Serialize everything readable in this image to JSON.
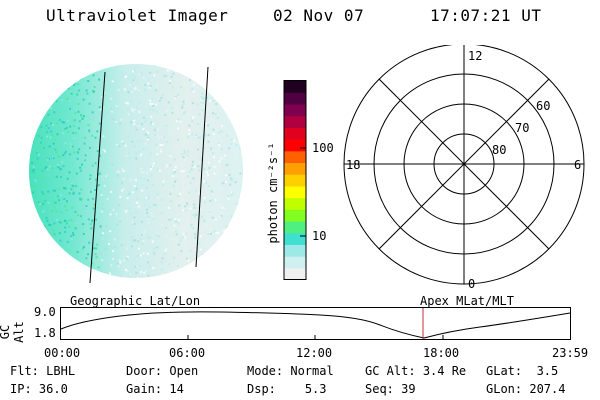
{
  "header": {
    "instrument": "Ultraviolet Imager",
    "date": "02 Nov 07",
    "time": "17:07:21 UT"
  },
  "colorbar": {
    "unit_label": "photon cm⁻²s⁻¹",
    "ticks": [
      "100",
      "10"
    ],
    "colors": [
      "#f0f0f0",
      "#d0f0f0",
      "#9ee8e8",
      "#40e0d0",
      "#50f080",
      "#80ff20",
      "#c0ff00",
      "#ffff00",
      "#ffd000",
      "#ffa000",
      "#ff6000",
      "#ff0000",
      "#e00020",
      "#b00040",
      "#800050",
      "#500040",
      "#200020"
    ]
  },
  "polar": {
    "mlt_labels": {
      "top": "12",
      "left": "18",
      "right": "6",
      "bottom": "0"
    },
    "lat_labels": [
      "60",
      "70",
      "80"
    ]
  },
  "panel_labels": {
    "left": "Geographic Lat/Lon",
    "right": "Apex MLat/MLT"
  },
  "orbit": {
    "ylabel": "GC Alt",
    "yticks": [
      "9.0",
      "1.8"
    ],
    "xticks": [
      "00:00",
      "06:00",
      "12:00",
      "18:00",
      "23:59"
    ],
    "marker_color": "#c03030"
  },
  "info": {
    "row1": [
      {
        "label": "Flt:",
        "value": "LBHL"
      },
      {
        "label": "Door:",
        "value": "Open"
      },
      {
        "label": "Mode:",
        "value": "Normal"
      },
      {
        "label": "GC Alt:",
        "value": "3.4 Re"
      },
      {
        "label": "GLat:",
        "value": "3.5"
      }
    ],
    "row2": [
      {
        "label": "IP:",
        "value": "36.0"
      },
      {
        "label": "Gain:",
        "value": "14"
      },
      {
        "label": "Dsp:",
        "value": "5.3"
      },
      {
        "label": "Seq:",
        "value": "39"
      },
      {
        "label": "GLon:",
        "value": "207.4"
      }
    ]
  }
}
